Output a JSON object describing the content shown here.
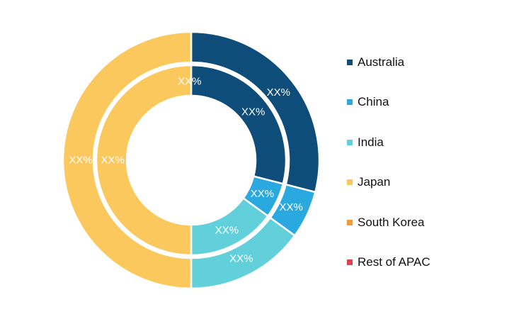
{
  "chart_data": {
    "type": "donut",
    "legend_position": "right",
    "categories": [
      {
        "name": "Australia",
        "color": "#0e4d7a"
      },
      {
        "name": "China",
        "color": "#2aa8e0"
      },
      {
        "name": "India",
        "color": "#62d0da"
      },
      {
        "name": "Japan",
        "color": "#fbc85d"
      },
      {
        "name": "South Korea",
        "color": "#f39a33"
      },
      {
        "name": "Rest of APAC",
        "color": "#e0434d"
      }
    ],
    "rings": [
      {
        "ring": "outer",
        "values": [
          29,
          6,
          15,
          50,
          0,
          0
        ],
        "labels": [
          "XX%",
          "XX%",
          "XX%",
          "XX%",
          "",
          ""
        ]
      },
      {
        "ring": "inner",
        "values": [
          29,
          6,
          15,
          50,
          0,
          0
        ],
        "labels": [
          "XX%",
          "XX%",
          "XX%",
          "XX%",
          "",
          ""
        ],
        "extra_label": "XX%"
      }
    ]
  }
}
